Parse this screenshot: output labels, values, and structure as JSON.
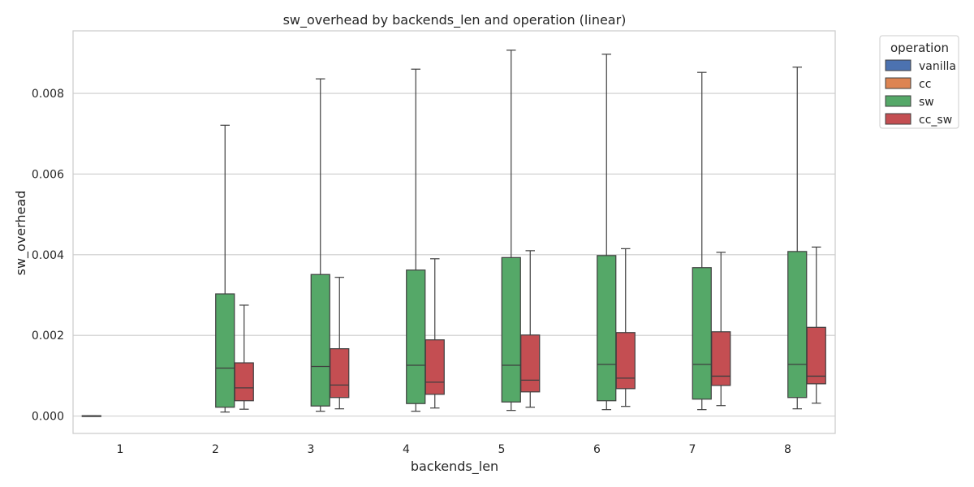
{
  "chart_data": {
    "type": "box",
    "title": "sw_overhead by backends_len and operation (linear)",
    "xlabel": "backends_len",
    "ylabel": "sw_overhead",
    "categories": [
      "1",
      "2",
      "3",
      "4",
      "5",
      "6",
      "7",
      "8"
    ],
    "ylim": [
      -0.00043,
      0.00955
    ],
    "yticks": [
      0.0,
      0.002,
      0.004,
      0.006,
      0.008
    ],
    "ytick_labels": [
      "0.000",
      "0.002",
      "0.004",
      "0.006",
      "0.008"
    ],
    "grid": true,
    "legend": {
      "title": "operation",
      "position": "outside-top-right"
    },
    "series": [
      {
        "name": "vanilla",
        "color": "#4c72b0",
        "boxes": [
          {
            "x": "1",
            "whislo": 0.0,
            "q1": 0.0,
            "med": 0.0,
            "q3": 1e-05,
            "whishi": 1e-05
          }
        ]
      },
      {
        "name": "cc",
        "color": "#dd8452",
        "boxes": []
      },
      {
        "name": "sw",
        "color": "#55a868",
        "boxes": [
          {
            "x": "2",
            "whislo": 0.0001,
            "q1": 0.00022,
            "med": 0.00119,
            "q3": 0.00303,
            "whishi": 0.00721
          },
          {
            "x": "3",
            "whislo": 0.00012,
            "q1": 0.00025,
            "med": 0.00123,
            "q3": 0.00351,
            "whishi": 0.00836
          },
          {
            "x": "4",
            "whislo": 0.00012,
            "q1": 0.00031,
            "med": 0.00126,
            "q3": 0.00362,
            "whishi": 0.0086
          },
          {
            "x": "5",
            "whislo": 0.00014,
            "q1": 0.00035,
            "med": 0.00126,
            "q3": 0.00393,
            "whishi": 0.00907
          },
          {
            "x": "6",
            "whislo": 0.00016,
            "q1": 0.00038,
            "med": 0.00128,
            "q3": 0.00398,
            "whishi": 0.00897
          },
          {
            "x": "7",
            "whislo": 0.00016,
            "q1": 0.00042,
            "med": 0.00128,
            "q3": 0.00368,
            "whishi": 0.00852
          },
          {
            "x": "8",
            "whislo": 0.00018,
            "q1": 0.00046,
            "med": 0.00128,
            "q3": 0.00408,
            "whishi": 0.00865
          }
        ]
      },
      {
        "name": "cc_sw",
        "color": "#c44e52",
        "boxes": [
          {
            "x": "2",
            "whislo": 0.00017,
            "q1": 0.00038,
            "med": 0.0007,
            "q3": 0.00132,
            "whishi": 0.00275
          },
          {
            "x": "3",
            "whislo": 0.00018,
            "q1": 0.00046,
            "med": 0.00077,
            "q3": 0.00167,
            "whishi": 0.00344
          },
          {
            "x": "4",
            "whislo": 0.0002,
            "q1": 0.00054,
            "med": 0.00084,
            "q3": 0.00189,
            "whishi": 0.0039
          },
          {
            "x": "5",
            "whislo": 0.00022,
            "q1": 0.0006,
            "med": 0.00089,
            "q3": 0.00201,
            "whishi": 0.0041
          },
          {
            "x": "6",
            "whislo": 0.00024,
            "q1": 0.00068,
            "med": 0.00094,
            "q3": 0.00207,
            "whishi": 0.00415
          },
          {
            "x": "7",
            "whislo": 0.00026,
            "q1": 0.00076,
            "med": 0.00099,
            "q3": 0.00209,
            "whishi": 0.00406
          },
          {
            "x": "8",
            "whislo": 0.00032,
            "q1": 0.0008,
            "med": 0.00099,
            "q3": 0.0022,
            "whishi": 0.00419
          }
        ]
      }
    ]
  }
}
